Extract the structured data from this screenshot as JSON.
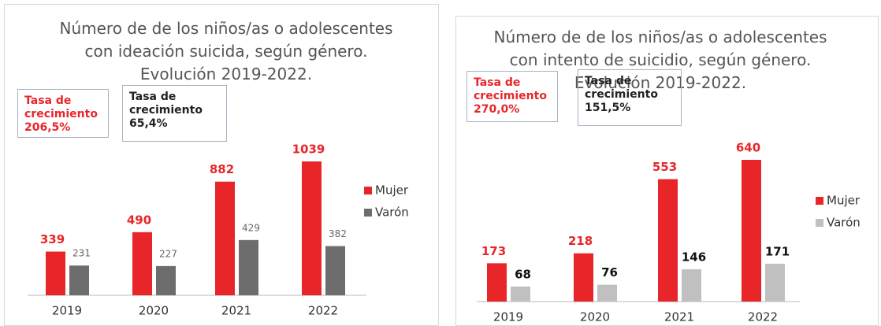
{
  "chart_data": [
    {
      "type": "bar",
      "title": "Número de de los niños/as o adolescentes con ideación suicida, según género. Evolución 2019-2022.",
      "annotations": [
        {
          "text": "Tasa de crecimiento 206,5%",
          "color": "#e8262a"
        },
        {
          "text": "Tasa de crecimiento 65,4%",
          "color": "#222222"
        }
      ],
      "categories": [
        "2019",
        "2020",
        "2021",
        "2022"
      ],
      "series": [
        {
          "name": "Mujer",
          "color": "#e8262a",
          "values": [
            339,
            490,
            882,
            1039
          ]
        },
        {
          "name": "Varón",
          "color": "#6d6d6d",
          "values": [
            231,
            227,
            429,
            382
          ]
        }
      ]
    },
    {
      "type": "bar",
      "title": "Número de de los niños/as o adolescentes con intento de suicidio, según género. Evolución 2019-2022.",
      "annotations": [
        {
          "text": "Tasa de crecimiento 270,0%",
          "color": "#e8262a"
        },
        {
          "text": "Tasa de crecimiento 151,5%",
          "color": "#222222"
        }
      ],
      "categories": [
        "2019",
        "2020",
        "2021",
        "2022"
      ],
      "series": [
        {
          "name": "Mujer",
          "color": "#e8262a",
          "values": [
            173,
            218,
            553,
            640
          ]
        },
        {
          "name": "Varón",
          "color": "#c0c0c0",
          "values": [
            68,
            76,
            146,
            171
          ]
        }
      ]
    }
  ]
}
